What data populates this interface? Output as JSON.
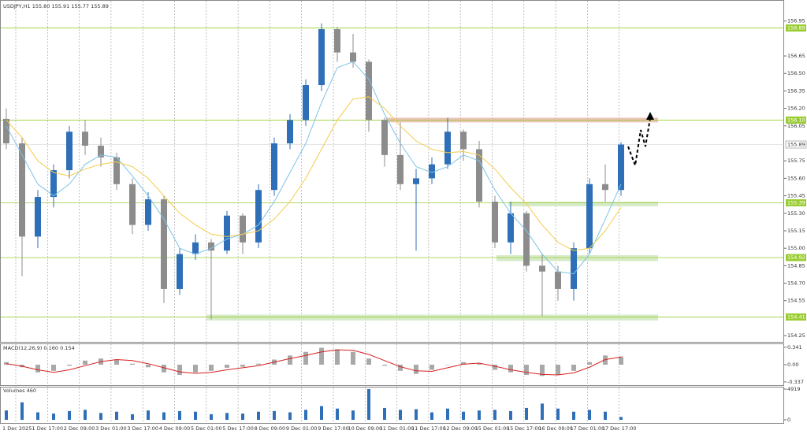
{
  "chart_data": {
    "type": "candlestick",
    "title": "USDJPY,H1  155.80 155.91 155.77 155.89",
    "open": [
      156.11,
      155.9,
      155.1,
      155.44,
      155.67,
      156.0,
      155.88,
      155.78,
      155.55,
      155.2,
      155.42,
      154.65,
      154.95,
      155.05,
      154.98,
      155.28,
      155.05,
      155.5,
      155.9,
      156.1,
      156.4,
      156.88,
      156.68,
      156.6,
      156.1,
      155.8,
      155.55,
      155.6,
      155.72,
      156.0,
      155.85,
      155.4,
      155.05,
      155.3,
      154.85,
      154.8,
      154.65,
      155.0,
      155.55,
      155.5
    ],
    "high": [
      156.2,
      155.95,
      155.5,
      155.72,
      156.05,
      156.1,
      155.95,
      155.82,
      155.6,
      155.48,
      155.45,
      155.0,
      155.12,
      155.08,
      155.32,
      155.3,
      155.55,
      155.95,
      156.15,
      156.45,
      156.93,
      156.9,
      156.84,
      156.62,
      156.12,
      156.08,
      155.68,
      155.78,
      156.12,
      156.02,
      155.92,
      155.45,
      155.4,
      155.32,
      154.95,
      154.85,
      155.05,
      155.6,
      155.72,
      155.91
    ],
    "low": [
      155.85,
      154.76,
      155.0,
      155.35,
      155.6,
      155.8,
      155.7,
      155.5,
      155.12,
      155.15,
      154.53,
      154.6,
      154.9,
      154.39,
      154.95,
      154.95,
      155.0,
      155.45,
      155.85,
      156.05,
      156.35,
      156.6,
      156.55,
      156.0,
      155.7,
      155.5,
      154.98,
      155.55,
      155.68,
      155.75,
      155.35,
      155.0,
      154.95,
      154.8,
      154.42,
      154.55,
      154.55,
      154.95,
      155.4,
      155.45
    ],
    "close": [
      155.9,
      155.1,
      155.44,
      155.67,
      156.0,
      155.88,
      155.78,
      155.55,
      155.2,
      155.42,
      154.65,
      154.95,
      155.05,
      154.98,
      155.28,
      155.05,
      155.5,
      155.9,
      156.1,
      156.4,
      156.88,
      156.68,
      156.6,
      156.1,
      155.8,
      155.55,
      155.6,
      155.72,
      156.0,
      155.85,
      155.4,
      155.05,
      155.3,
      154.85,
      154.8,
      154.65,
      155.0,
      155.55,
      155.5,
      155.89
    ],
    "up_color": "#2f6fb8",
    "down_color": "#8c8c8c",
    "ma": [
      {
        "color": "#7ec3e6",
        "values": [
          156.05,
          155.8,
          155.55,
          155.45,
          155.55,
          155.72,
          155.8,
          155.78,
          155.62,
          155.45,
          155.25,
          155.0,
          154.95,
          155.0,
          155.08,
          155.12,
          155.2,
          155.4,
          155.65,
          155.9,
          156.25,
          156.55,
          156.6,
          156.45,
          156.15,
          155.9,
          155.7,
          155.65,
          155.7,
          155.8,
          155.75,
          155.5,
          155.3,
          155.15,
          154.95,
          154.8,
          154.78,
          154.95,
          155.25,
          155.55
        ]
      },
      {
        "color": "#f2cc4a",
        "values": [
          156.1,
          155.95,
          155.75,
          155.65,
          155.62,
          155.68,
          155.72,
          155.74,
          155.7,
          155.6,
          155.45,
          155.3,
          155.2,
          155.12,
          155.1,
          155.12,
          155.15,
          155.25,
          155.4,
          155.6,
          155.85,
          156.1,
          156.28,
          156.3,
          156.2,
          156.05,
          155.92,
          155.85,
          155.82,
          155.83,
          155.8,
          155.68,
          155.52,
          155.38,
          155.2,
          155.05,
          154.98,
          155.0,
          155.15,
          155.35
        ]
      }
    ],
    "ylim": [
      154.19,
      157.11
    ],
    "yticks": [
      156.95,
      156.65,
      {
        "value": 156.5,
        "label": "156.50"
      },
      156.35,
      {
        "value": 156.2,
        "label": "156.20"
      },
      156.05,
      155.75,
      {
        "value": 155.6,
        "label": "155.60"
      },
      155.45,
      {
        "value": 155.3,
        "label": "155.30"
      },
      155.15,
      {
        "value": 155,
        "label": "155.00"
      },
      154.85,
      {
        "value": 154.7,
        "label": "154.70"
      },
      154.55,
      154.25
    ],
    "levels": [
      156.89,
      {
        "value": 156.1,
        "label": "156.10"
      },
      155.39,
      154.92,
      154.41
    ],
    "level_color": "#9acd32",
    "zones": [
      {
        "low": 156.08,
        "high": 156.12,
        "color": "#e9b9ad"
      },
      {
        "low": 155.36,
        "high": 155.4,
        "color": "#cfe8bd"
      },
      {
        "low": 154.89,
        "high": 154.94,
        "color": "#cfe8bd"
      },
      {
        "low": 154.38,
        "high": 154.43,
        "color": "#cfe8bd"
      }
    ],
    "current_price": 155.89,
    "xticks": [
      "1 Dec 2025",
      "1 Dec 17:00",
      "2 Dec 09:00",
      "3 Dec 01:00",
      "3 Dec 17:00",
      "4 Dec 09:00",
      "5 Dec 01:00",
      "5 Dec 17:00",
      "8 Dec 09:00",
      "9 Dec 01:00",
      "9 Dec 17:00",
      "10 Dec 09:00",
      "11 Dec 01:00",
      "11 Dec 17:00",
      "12 Dec 09:00",
      "15 Dec 01:00",
      "15 Dec 17:00",
      "16 Dec 09:00",
      "17 Dec 01:00",
      "17 Dec 17:00"
    ],
    "macd": {
      "title": "MACD(12,26,9) 0.160 0.154",
      "histogram": [
        0.05,
        -0.05,
        -0.15,
        -0.12,
        -0.02,
        0.08,
        0.12,
        0.1,
        0.02,
        -0.05,
        -0.15,
        -0.2,
        -0.15,
        -0.12,
        -0.06,
        -0.04,
        0.02,
        0.1,
        0.18,
        0.25,
        0.33,
        0.3,
        0.25,
        0.12,
        -0.02,
        -0.12,
        -0.18,
        -0.1,
        0.0,
        0.05,
        0.02,
        -0.1,
        -0.15,
        -0.2,
        -0.22,
        -0.2,
        -0.12,
        0.05,
        0.18,
        0.16
      ],
      "signal": [
        0.02,
        -0.03,
        -0.1,
        -0.15,
        -0.1,
        -0.02,
        0.06,
        0.1,
        0.08,
        0.02,
        -0.06,
        -0.14,
        -0.17,
        -0.15,
        -0.1,
        -0.06,
        -0.02,
        0.05,
        0.12,
        0.18,
        0.25,
        0.29,
        0.28,
        0.2,
        0.08,
        -0.04,
        -0.12,
        -0.13,
        -0.06,
        0.01,
        0.03,
        -0.03,
        -0.1,
        -0.15,
        -0.19,
        -0.2,
        -0.16,
        -0.05,
        0.1,
        0.15
      ],
      "histogram_color": "#a8a8a8",
      "signal_color": "#d62020",
      "ylim": [
        -0.4,
        0.4
      ],
      "yticks": [
        -0.337,
        {
          "value": 0,
          "label": "0.00"
        },
        0.341
      ]
    },
    "volume": {
      "title": "Volumes 460",
      "values": [
        1500,
        2800,
        1200,
        1000,
        1400,
        1600,
        1100,
        1300,
        900,
        1500,
        1200,
        1400,
        1300,
        900,
        1100,
        1000,
        1300,
        1400,
        1200,
        1600,
        2200,
        1800,
        1500,
        4919,
        1900,
        1600,
        1700,
        1200,
        1800,
        1300,
        1500,
        1600,
        1400,
        1900,
        2600,
        1800,
        1300,
        1600,
        1300,
        460
      ],
      "color": "#2f6fb8",
      "ylim": [
        0,
        4919
      ],
      "yticks": [
        0,
        4919
      ]
    }
  }
}
